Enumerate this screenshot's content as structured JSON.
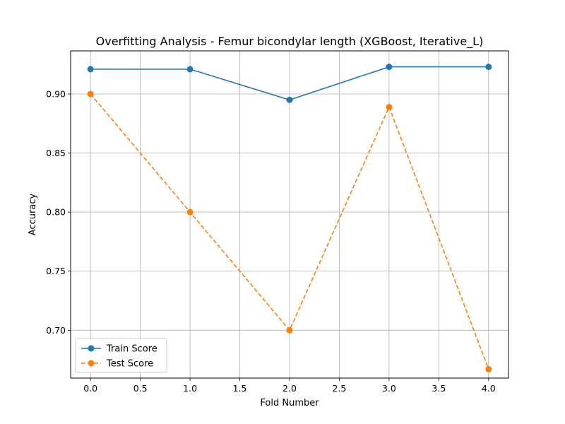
{
  "chart_data": {
    "type": "line",
    "title": "Overfitting Analysis - Femur bicondylar length (XGBoost, Iterative_L)",
    "xlabel": "Fold Number",
    "ylabel": "Accuracy",
    "x": [
      0,
      1,
      2,
      3,
      4
    ],
    "xlim": [
      -0.2,
      4.2
    ],
    "ylim": [
      0.6595,
      0.9365
    ],
    "xticks": [
      0.0,
      0.5,
      1.0,
      1.5,
      2.0,
      2.5,
      3.0,
      3.5,
      4.0
    ],
    "yticks": [
      0.7,
      0.75,
      0.8,
      0.85,
      0.9
    ],
    "grid": true,
    "legend_position": "lower-left",
    "series": [
      {
        "name": "Train Score",
        "values": [
          0.921,
          0.921,
          0.895,
          0.923,
          0.923
        ],
        "color": "#1f77b4",
        "linestyle": "solid",
        "marker": "circle"
      },
      {
        "name": "Test Score",
        "values": [
          0.9,
          0.8,
          0.7,
          0.889,
          0.667
        ],
        "color": "#ff7f0e",
        "linestyle": "dashed",
        "marker": "circle"
      }
    ]
  }
}
